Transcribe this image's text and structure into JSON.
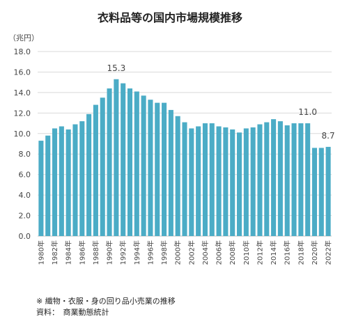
{
  "chart_data": {
    "type": "bar",
    "title": "衣料品等の国内市場規模推移",
    "ylabel": "（兆円）",
    "ylim": [
      0,
      18
    ],
    "yticks": [
      "0.0",
      "2.0",
      "4.0",
      "6.0",
      "8.0",
      "10.0",
      "12.0",
      "14.0",
      "16.0",
      "18.0"
    ],
    "grid": true,
    "bar_color": "#4bacc6",
    "categories": [
      "1980年",
      "1981年",
      "1982年",
      "1983年",
      "1984年",
      "1985年",
      "1986年",
      "1987年",
      "1988年",
      "1989年",
      "1990年",
      "1991年",
      "1992年",
      "1993年",
      "1994年",
      "1995年",
      "1996年",
      "1997年",
      "1998年",
      "1999年",
      "2000年",
      "2001年",
      "2002年",
      "2003年",
      "2004年",
      "2005年",
      "2006年",
      "2007年",
      "2008年",
      "2009年",
      "2010年",
      "2011年",
      "2012年",
      "2013年",
      "2014年",
      "2015年",
      "2016年",
      "2017年",
      "2018年",
      "2019年",
      "2020年",
      "2021年",
      "2022年"
    ],
    "x_tick_labels": [
      "1980年",
      "",
      "1982年",
      "",
      "1984年",
      "",
      "1986年",
      "",
      "1988年",
      "",
      "1990年",
      "",
      "1992年",
      "",
      "1994年",
      "",
      "1996年",
      "",
      "1998年",
      "",
      "2000年",
      "",
      "2002年",
      "",
      "2004年",
      "",
      "2006年",
      "",
      "2008年",
      "",
      "2010年",
      "",
      "2012年",
      "",
      "2014年",
      "",
      "2016年",
      "",
      "2018年",
      "",
      "2020年",
      "",
      "2022年"
    ],
    "values": [
      9.3,
      9.8,
      10.5,
      10.7,
      10.4,
      10.9,
      11.2,
      11.9,
      12.8,
      13.5,
      14.4,
      15.3,
      14.9,
      14.4,
      14.1,
      13.7,
      13.3,
      13.0,
      13.0,
      12.3,
      11.7,
      11.1,
      10.5,
      10.7,
      11.0,
      11.0,
      10.7,
      10.6,
      10.4,
      10.1,
      10.5,
      10.6,
      10.9,
      11.1,
      11.4,
      11.2,
      10.8,
      11.0,
      11.0,
      11.0,
      8.6,
      8.6,
      8.7
    ],
    "data_labels": [
      {
        "index": 11,
        "text": "15.3"
      },
      {
        "index": 39,
        "text": "11.0"
      },
      {
        "index": 42,
        "text": "8.7"
      }
    ]
  },
  "footnotes": {
    "line1": "※ 織物・衣服・身の回り品小売業の推移",
    "line2": "資料：　商業動態統計"
  }
}
